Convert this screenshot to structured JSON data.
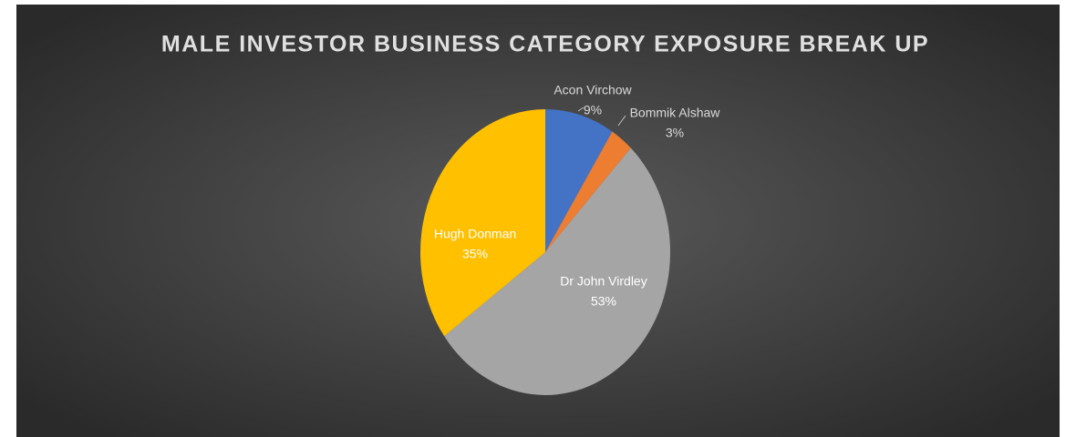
{
  "chart_data": {
    "type": "pie",
    "title": "MALE INVESTOR BUSINESS CATEGORY EXPOSURE BREAK UP",
    "categories": [
      "Acon Virchow",
      "Bommik Alshaw",
      "Dr John Virdley",
      "Hugh Donman"
    ],
    "values": [
      9,
      3,
      53,
      35
    ],
    "value_labels": [
      "9%",
      "3%",
      "53%",
      "35%"
    ],
    "colors": [
      "#4472c4",
      "#ed7d31",
      "#a5a5a5",
      "#ffc000"
    ]
  }
}
